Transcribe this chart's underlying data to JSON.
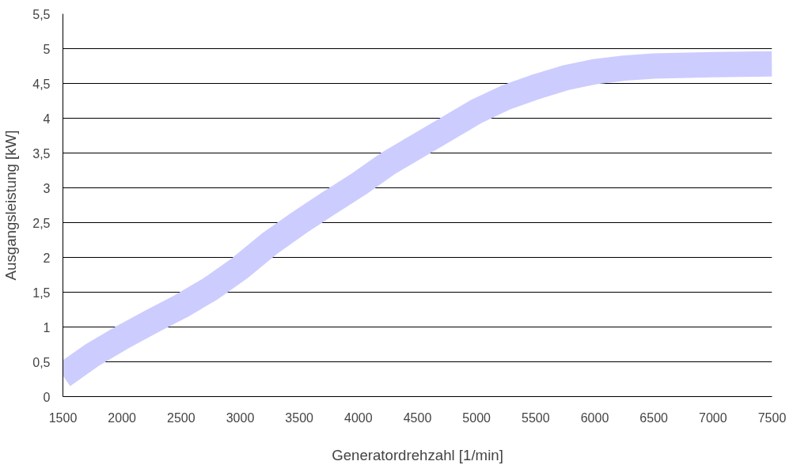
{
  "chart_data": {
    "type": "line",
    "xlabel": "Generatordrehzahl [1/min]",
    "ylabel": "Ausgangsleistung [kW]",
    "x": [
      1500,
      1750,
      2000,
      2250,
      2500,
      2750,
      3000,
      3250,
      3500,
      3750,
      4000,
      4250,
      4500,
      4750,
      5000,
      5250,
      5500,
      5750,
      6000,
      6250,
      6500,
      7000,
      7500
    ],
    "series": [
      {
        "color": "#ccccff",
        "values": [
          0.3,
          0.6,
          0.85,
          1.08,
          1.3,
          1.55,
          1.85,
          2.2,
          2.5,
          2.78,
          3.05,
          3.35,
          3.6,
          3.85,
          4.1,
          4.3,
          4.45,
          4.58,
          4.67,
          4.72,
          4.75,
          4.77,
          4.78
        ]
      }
    ],
    "xlim": [
      1500,
      7500
    ],
    "ylim": [
      0,
      5.5
    ],
    "xticks": [
      1500,
      2000,
      2500,
      3000,
      3500,
      4000,
      4500,
      5000,
      5500,
      6000,
      6500,
      7000,
      7500
    ],
    "yticks": [
      {
        "value": 0,
        "label": "0"
      },
      {
        "value": 0.5,
        "label": "0,5"
      },
      {
        "value": 1,
        "label": "1"
      },
      {
        "value": 1.5,
        "label": "1,5"
      },
      {
        "value": 2,
        "label": "2"
      },
      {
        "value": 2.5,
        "label": "2,5"
      },
      {
        "value": 3,
        "label": "3"
      },
      {
        "value": 3.5,
        "label": "3,5"
      },
      {
        "value": 4,
        "label": "4"
      },
      {
        "value": 4.5,
        "label": "4,5"
      },
      {
        "value": 5,
        "label": "5"
      },
      {
        "value": 5.5,
        "label": "5,5"
      }
    ],
    "grid": "y"
  }
}
